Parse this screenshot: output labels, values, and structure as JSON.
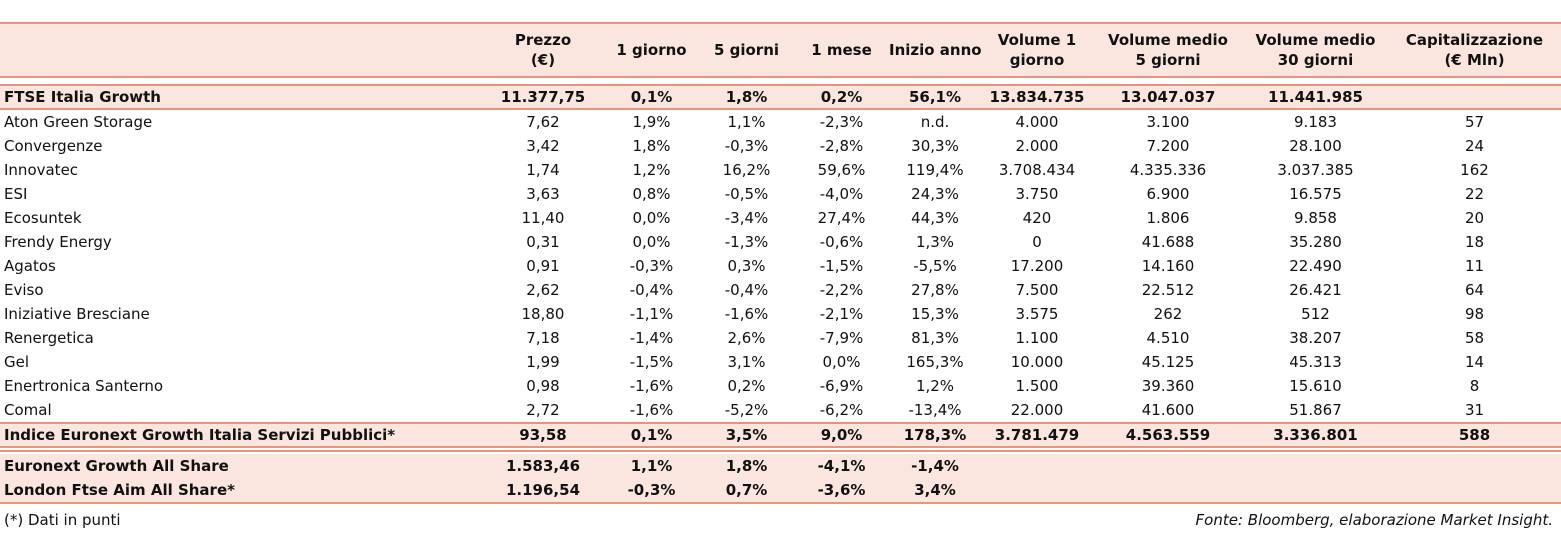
{
  "headers": {
    "price": [
      "Prezzo",
      "(€)"
    ],
    "d1": [
      "1 giorno"
    ],
    "d5": [
      "5 giorni"
    ],
    "m1": [
      "1 mese"
    ],
    "ytd": [
      "Inizio anno"
    ],
    "v1": [
      "Volume 1",
      "giorno"
    ],
    "v5": [
      "Volume medio",
      "5 giorni"
    ],
    "v30": [
      "Volume medio",
      "30 giorni"
    ],
    "cap": [
      "Capitalizzazione",
      "(€ Mln)"
    ]
  },
  "index_top": {
    "name": "FTSE Italia Growth",
    "price": "11.377,75",
    "d1": "0,1%",
    "d5": "1,8%",
    "m1": "0,2%",
    "ytd": "56,1%",
    "v1": "13.834.735",
    "v5": "13.047.037",
    "v30": "11.441.985",
    "cap": ""
  },
  "rows": [
    {
      "name": "Aton Green Storage",
      "price": "7,62",
      "d1": "1,9%",
      "d5": "1,1%",
      "m1": "-2,3%",
      "ytd": "n.d.",
      "v1": "4.000",
      "v5": "3.100",
      "v30": "9.183",
      "cap": "57"
    },
    {
      "name": "Convergenze",
      "price": "3,42",
      "d1": "1,8%",
      "d5": "-0,3%",
      "m1": "-2,8%",
      "ytd": "30,3%",
      "v1": "2.000",
      "v5": "7.200",
      "v30": "28.100",
      "cap": "24"
    },
    {
      "name": "Innovatec",
      "price": "1,74",
      "d1": "1,2%",
      "d5": "16,2%",
      "m1": "59,6%",
      "ytd": "119,4%",
      "v1": "3.708.434",
      "v5": "4.335.336",
      "v30": "3.037.385",
      "cap": "162"
    },
    {
      "name": "ESI",
      "price": "3,63",
      "d1": "0,8%",
      "d5": "-0,5%",
      "m1": "-4,0%",
      "ytd": "24,3%",
      "v1": "3.750",
      "v5": "6.900",
      "v30": "16.575",
      "cap": "22"
    },
    {
      "name": "Ecosuntek",
      "price": "11,40",
      "d1": "0,0%",
      "d5": "-3,4%",
      "m1": "27,4%",
      "ytd": "44,3%",
      "v1": "420",
      "v5": "1.806",
      "v30": "9.858",
      "cap": "20"
    },
    {
      "name": "Frendy Energy",
      "price": "0,31",
      "d1": "0,0%",
      "d5": "-1,3%",
      "m1": "-0,6%",
      "ytd": "1,3%",
      "v1": "0",
      "v5": "41.688",
      "v30": "35.280",
      "cap": "18"
    },
    {
      "name": "Agatos",
      "price": "0,91",
      "d1": "-0,3%",
      "d5": "0,3%",
      "m1": "-1,5%",
      "ytd": "-5,5%",
      "v1": "17.200",
      "v5": "14.160",
      "v30": "22.490",
      "cap": "11"
    },
    {
      "name": "Eviso",
      "price": "2,62",
      "d1": "-0,4%",
      "d5": "-0,4%",
      "m1": "-2,2%",
      "ytd": "27,8%",
      "v1": "7.500",
      "v5": "22.512",
      "v30": "26.421",
      "cap": "64"
    },
    {
      "name": "Iniziative Bresciane",
      "price": "18,80",
      "d1": "-1,1%",
      "d5": "-1,6%",
      "m1": "-2,1%",
      "ytd": "15,3%",
      "v1": "3.575",
      "v5": "262",
      "v30": "512",
      "cap": "98"
    },
    {
      "name": "Renergetica",
      "price": "7,18",
      "d1": "-1,4%",
      "d5": "2,6%",
      "m1": "-7,9%",
      "ytd": "81,3%",
      "v1": "1.100",
      "v5": "4.510",
      "v30": "38.207",
      "cap": "58"
    },
    {
      "name": "Gel",
      "price": "1,99",
      "d1": "-1,5%",
      "d5": "3,1%",
      "m1": "0,0%",
      "ytd": "165,3%",
      "v1": "10.000",
      "v5": "45.125",
      "v30": "45.313",
      "cap": "14"
    },
    {
      "name": "Enertronica Santerno",
      "price": "0,98",
      "d1": "-1,6%",
      "d5": "0,2%",
      "m1": "-6,9%",
      "ytd": "1,2%",
      "v1": "1.500",
      "v5": "39.360",
      "v30": "15.610",
      "cap": "8"
    },
    {
      "name": "Comal",
      "price": "2,72",
      "d1": "-1,6%",
      "d5": "-5,2%",
      "m1": "-6,2%",
      "ytd": "-13,4%",
      "v1": "22.000",
      "v5": "41.600",
      "v30": "51.867",
      "cap": "31"
    }
  ],
  "index_sector": {
    "name": "Indice Euronext Growth Italia Servizi Pubblici*",
    "price": "93,58",
    "d1": "0,1%",
    "d5": "3,5%",
    "m1": "9,0%",
    "ytd": "178,3%",
    "v1": "3.781.479",
    "v5": "4.563.559",
    "v30": "3.336.801",
    "cap": "588"
  },
  "footer_rows": [
    {
      "name": "Euronext Growth All Share",
      "price": "1.583,46",
      "d1": "1,1%",
      "d5": "1,8%",
      "m1": "-4,1%",
      "ytd": "-1,4%",
      "v1": "",
      "v5": "",
      "v30": "",
      "cap": ""
    },
    {
      "name": "London Ftse Aim All Share*",
      "price": "1.196,54",
      "d1": "-0,3%",
      "d5": "0,7%",
      "m1": "-3,6%",
      "ytd": "3,4%",
      "v1": "",
      "v5": "",
      "v30": "",
      "cap": ""
    }
  ],
  "note": "(*) Dati in punti",
  "source": "Fonte: Bloomberg, elaborazione Market Insight."
}
